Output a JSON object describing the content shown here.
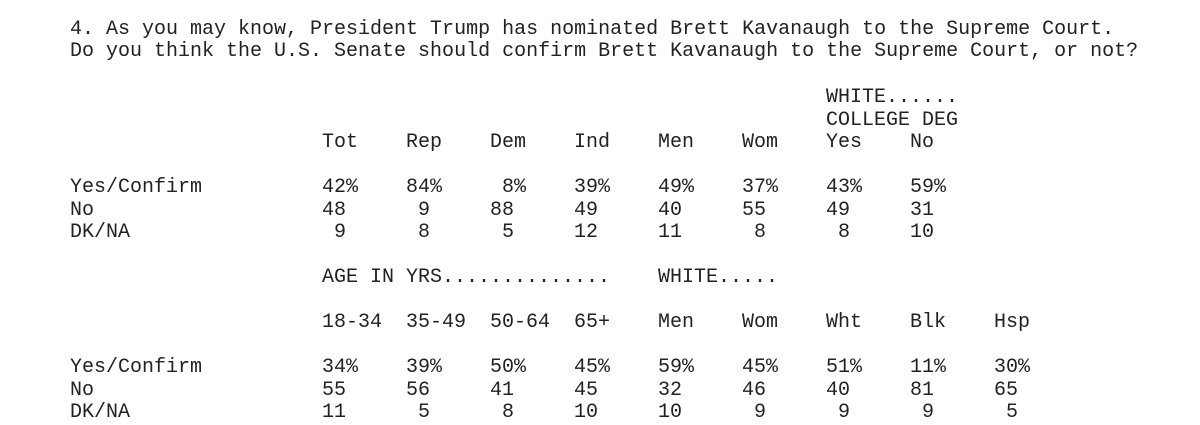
{
  "question": {
    "lines": [
      "4. As you may know, President Trump has nominated Brett Kavanaugh to the Supreme Court.",
      "Do you think the U.S. Senate should confirm Brett Kavanaugh to the Supreme Court, or not?"
    ]
  },
  "tables": [
    {
      "group_headers": [
        "WHITE......",
        "COLLEGE DEG"
      ],
      "columns": [
        "Tot",
        "Rep",
        "Dem",
        "Ind",
        "Men",
        "Wom",
        "Yes",
        "No"
      ],
      "rows": [
        {
          "label": "Yes/Confirm",
          "values": [
            "42%",
            "84%",
            "8%",
            "39%",
            "49%",
            "37%",
            "43%",
            "59%"
          ]
        },
        {
          "label": "No",
          "values": [
            "48",
            "9",
            "88",
            "49",
            "40",
            "55",
            "49",
            "31"
          ]
        },
        {
          "label": "DK/NA",
          "values": [
            "9",
            "8",
            "5",
            "12",
            "11",
            "8",
            "8",
            "10"
          ]
        }
      ]
    },
    {
      "group_headers": [
        "AGE IN YRS..............",
        "WHITE....."
      ],
      "columns": [
        "18-34",
        "35-49",
        "50-64",
        "65+",
        "Men",
        "Wom",
        "Wht",
        "Blk",
        "Hsp"
      ],
      "rows": [
        {
          "label": "Yes/Confirm",
          "values": [
            "34%",
            "39%",
            "50%",
            "45%",
            "59%",
            "45%",
            "51%",
            "11%",
            "30%"
          ]
        },
        {
          "label": "No",
          "values": [
            "55",
            "56",
            "41",
            "45",
            "32",
            "46",
            "40",
            "81",
            "65"
          ]
        },
        {
          "label": "DK/NA",
          "values": [
            "11",
            "5",
            "8",
            "10",
            "10",
            "9",
            "9",
            "9",
            "5"
          ]
        }
      ]
    }
  ]
}
